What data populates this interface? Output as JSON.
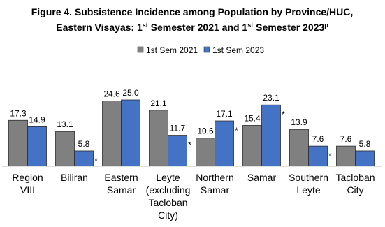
{
  "chart_data": {
    "type": "bar",
    "title_lines": [
      [
        {
          "text": "Figure 4. Subsistence Incidence among Population by Province/HUC,"
        }
      ],
      [
        {
          "text": "Eastern Visayas: 1"
        },
        {
          "text": "st",
          "sup": true
        },
        {
          "text": " Semester 2021 and 1"
        },
        {
          "text": "st",
          "sup": true
        },
        {
          "text": " Semester 2023"
        },
        {
          "text": "p",
          "sup": true
        }
      ]
    ],
    "categories": [
      [
        "Region",
        "VIII"
      ],
      [
        "Biliran"
      ],
      [
        "Eastern",
        "Samar"
      ],
      [
        "Leyte",
        "(excluding",
        "Tacloban",
        "City)"
      ],
      [
        "Northern",
        "Samar"
      ],
      [
        "Samar"
      ],
      [
        "Southern",
        "Leyte"
      ],
      [
        "Tacloban",
        "City"
      ]
    ],
    "series": [
      {
        "name": "1st Sem 2021",
        "color": "#808080",
        "values": [
          17.3,
          13.1,
          24.6,
          21.1,
          10.6,
          15.4,
          13.9,
          7.6
        ]
      },
      {
        "name": "1st Sem 2023",
        "color": "#4472c4",
        "values": [
          14.9,
          5.8,
          25.0,
          11.7,
          17.1,
          23.1,
          7.6,
          5.8
        ],
        "value_labels": [
          "14.9",
          "5.8",
          "25.0",
          "11.7",
          "17.1",
          "23.1",
          "7.6",
          "5.8"
        ],
        "notes": [
          null,
          "*",
          null,
          "*",
          "*",
          "*",
          "*",
          null
        ]
      }
    ],
    "ylim": [
      0,
      30
    ],
    "legend": "top"
  }
}
